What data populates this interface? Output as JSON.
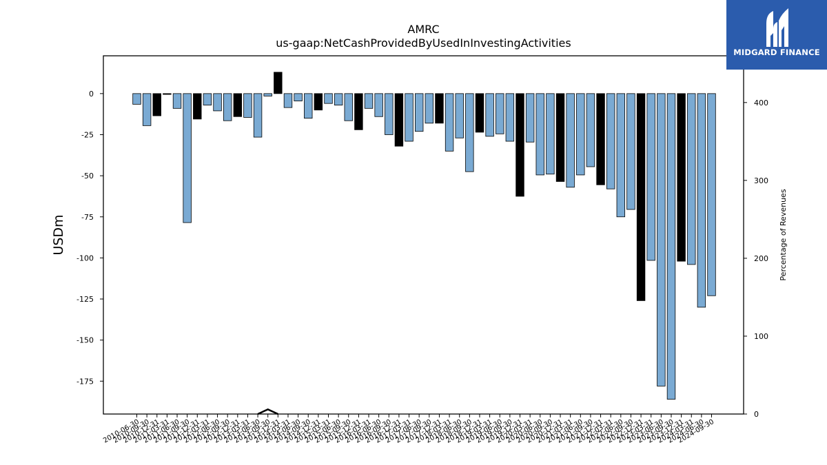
{
  "brand": {
    "name": "MIDGARD FINANCE",
    "background_color": "#2b5cad",
    "icon": "midgard-logo-icon"
  },
  "chart_data": {
    "type": "bar",
    "title": "AMRC",
    "subtitle": "us-gaap:NetCashProvidedByUsedInInvestingActivities",
    "ylabel": "USDm",
    "y2label": "Percentage of Revenues",
    "ylim": [
      -195,
      23
    ],
    "y2lim": [
      0,
      460
    ],
    "yticks": [
      0,
      -25,
      -50,
      -75,
      -100,
      -125,
      -150,
      -175
    ],
    "y2ticks": [
      0,
      100,
      200,
      300,
      400
    ],
    "colors": {
      "quarter": "#7aaad3",
      "annual": "#000000",
      "edge": "#000000"
    },
    "categories": [
      "2010-06-30",
      "2010-09-30",
      "2010-12-31",
      "2011-03-31",
      "2011-06-30",
      "2011-09-30",
      "2011-12-31",
      "2012-03-31",
      "2012-06-30",
      "2012-09-30",
      "2012-12-31",
      "2013-03-31",
      "2013-06-30",
      "2013-09-30",
      "2013-12-31",
      "2014-03-31",
      "2014-06-30",
      "2014-09-30",
      "2014-12-31",
      "2015-03-31",
      "2015-06-30",
      "2015-09-30",
      "2015-12-31",
      "2016-03-31",
      "2016-06-30",
      "2016-09-30",
      "2016-12-31",
      "2017-03-31",
      "2017-06-30",
      "2017-09-30",
      "2017-12-31",
      "2018-03-31",
      "2018-06-30",
      "2018-09-30",
      "2018-12-31",
      "2019-03-31",
      "2019-06-30",
      "2019-09-30",
      "2019-12-31",
      "2020-03-31",
      "2020-06-30",
      "2020-09-30",
      "2020-12-31",
      "2021-03-31",
      "2021-06-30",
      "2021-09-30",
      "2021-12-31",
      "2022-03-31",
      "2022-06-30",
      "2022-09-30",
      "2022-12-31",
      "2023-03-31",
      "2023-06-30",
      "2023-09-30",
      "2023-12-31",
      "2024-03-31",
      "2024-06-30",
      "2024-09-30"
    ],
    "xtick_labels": [
      "2010-06-30",
      "2010-09-30",
      "2010-12-31",
      "2011-03-31",
      "2011-06-30",
      "2011-09-30",
      "2011-12-31",
      "2012-03-31",
      "2012-06-30",
      "2012-09-30",
      "2012-12-31",
      "2013-03-31",
      "2013-06-30",
      "2013-09-30",
      "2013-12-31",
      "2014-03-31",
      "2014-06-30",
      "2014-09-30",
      "2014-12-31",
      "2015-03-31",
      "2015-06-30",
      "2015-09-30",
      "2015-12-31",
      "2016-03-31",
      "2016-06-30",
      "2016-09-30",
      "2016-12-31",
      "2017-03-31",
      "2017-06-30",
      "2017-09-30",
      "2017-12-31",
      "2018-03-31",
      "2018-06-30",
      "2018-09-30",
      "2018-12-31",
      "2019-03-31",
      "2019-06-30",
      "2019-09-30",
      "2019-12-31",
      "2020-03-31",
      "2020-06-30",
      "2020-09-30",
      "2020-12-31",
      "2021-03-31",
      "2021-06-30",
      "2021-09-30",
      "2021-12-31",
      "2022-03-31",
      "2022-06-30",
      "2022-09-30",
      "2022-12-31",
      "2023-03-31",
      "2023-06-30",
      "2023-09-30",
      "2023-12-31",
      "2024-03-31",
      "2024-06-30",
      "2024-09-30"
    ],
    "values": [
      -6.5,
      -19.5,
      -13.5,
      -0.5,
      -9,
      -78.5,
      -15.5,
      -7,
      -10.5,
      -16.5,
      -14,
      -14.5,
      -26.5,
      -1.5,
      13,
      -8.5,
      -4.5,
      -15,
      -10,
      -6,
      -7,
      -16.5,
      -22,
      -9,
      -14,
      -25,
      -32,
      -29,
      -23,
      -18,
      -18,
      -35,
      -27,
      -47.5,
      -23.5,
      -26,
      -24.5,
      -29,
      -62.5,
      -29.5,
      -49.5,
      -49,
      -53.5,
      -57,
      -49.5,
      -44.5,
      -55.5,
      -58,
      -75,
      -70.5,
      -126,
      -101.5,
      -178,
      -186,
      -102,
      -104,
      -130,
      -123
    ],
    "annual_flags": [
      false,
      false,
      true,
      true,
      false,
      false,
      true,
      false,
      false,
      false,
      true,
      false,
      false,
      false,
      true,
      false,
      false,
      false,
      true,
      false,
      false,
      false,
      true,
      false,
      false,
      false,
      true,
      false,
      false,
      false,
      true,
      false,
      false,
      false,
      true,
      false,
      false,
      false,
      true,
      false,
      false,
      false,
      true,
      false,
      false,
      false,
      true,
      false,
      false,
      false,
      true,
      false,
      false,
      false,
      true,
      false,
      false,
      false
    ],
    "series": [
      {
        "name": "",
        "axis": "y2",
        "x": [
          "2013-06-30",
          "2013-09-30",
          "2013-12-31"
        ],
        "values": [
          0,
          6,
          0
        ]
      }
    ],
    "grid": false,
    "legend": "none"
  }
}
